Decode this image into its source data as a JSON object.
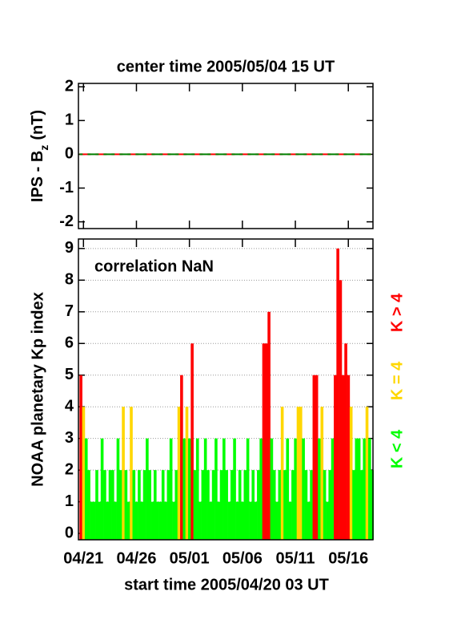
{
  "chart_data": [
    {
      "type": "line",
      "title": "center time 2005/05/04 15 UT",
      "ylabel_parts": [
        "IPS - B",
        "z",
        "(nT)"
      ],
      "xlim": [
        0.4,
        28.2
      ],
      "xticks": [
        0.875,
        5.875,
        10.875,
        15.875,
        20.875,
        25.875
      ],
      "ylim": [
        -2.2,
        2.1
      ],
      "yticks": [
        -2,
        -1,
        0,
        1,
        2
      ],
      "series": [
        {
          "color": "#ff0000",
          "x": [
            0.5,
            28.0
          ],
          "values": [
            0,
            0
          ]
        },
        {
          "color": "#008000",
          "x": [
            0.5,
            28.0
          ],
          "values": [
            0,
            0
          ]
        }
      ]
    },
    {
      "type": "bar",
      "annotation": "correlation NaN",
      "ylabel": "NOAA planetary Kp index",
      "xlabel": "start time 2005/04/20 03 UT",
      "xlim": [
        0.4,
        28.2
      ],
      "xticks": [
        {
          "value": 0.875,
          "label": "04/21"
        },
        {
          "value": 5.875,
          "label": "04/26"
        },
        {
          "value": 10.875,
          "label": "05/01"
        },
        {
          "value": 15.875,
          "label": "05/06"
        },
        {
          "value": 20.875,
          "label": "05/11"
        },
        {
          "value": 25.875,
          "label": "05/16"
        }
      ],
      "ylim": [
        -0.2,
        9.3
      ],
      "yticks": [
        0,
        1,
        2,
        3,
        4,
        5,
        6,
        7,
        8,
        9
      ],
      "grid": true,
      "x0": 0.5,
      "step": 0.25,
      "threshold": 4,
      "classes": [
        {
          "label": "K < 4",
          "color": "#00ff00"
        },
        {
          "label": "K = 4",
          "color": "#ffd700"
        },
        {
          "label": "K > 4",
          "color": "#ff0000"
        }
      ],
      "values": [
        5,
        4,
        3,
        2,
        1,
        1,
        2,
        1,
        3,
        2,
        1,
        2,
        2,
        1,
        3,
        2,
        4,
        2,
        1,
        4,
        2,
        1,
        2,
        1,
        2,
        3,
        2,
        1,
        2,
        1,
        1,
        2,
        1,
        2,
        3,
        1,
        2,
        4,
        5,
        3,
        4,
        3,
        6,
        2,
        3,
        1,
        2,
        3,
        2,
        1,
        2,
        3,
        1,
        2,
        3,
        2,
        1,
        2,
        3,
        1,
        2,
        1,
        2,
        3,
        1,
        2,
        1,
        2,
        3,
        6,
        6,
        7,
        3,
        2,
        1,
        2,
        4,
        2,
        3,
        1,
        2,
        3,
        4,
        4,
        3,
        2,
        1,
        2,
        5,
        5,
        3,
        4,
        2,
        1,
        2,
        3,
        5,
        9,
        8,
        5,
        6,
        5,
        4,
        2,
        3,
        3,
        2,
        3,
        4,
        3,
        2
      ]
    }
  ]
}
